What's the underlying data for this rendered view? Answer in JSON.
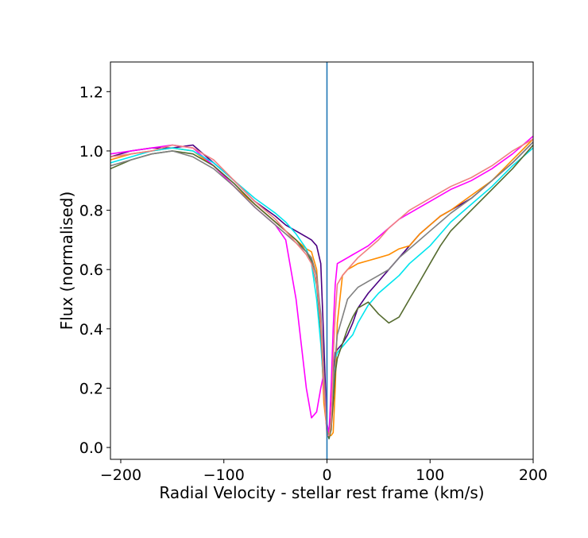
{
  "chart_data": {
    "type": "line",
    "title": "",
    "xlabel": "Radial Velocity - stellar rest frame (km/s)",
    "ylabel": "Flux (normalised)",
    "xlim": [
      -210,
      200
    ],
    "ylim": [
      -0.04,
      1.3
    ],
    "xticks": [
      -200,
      -100,
      0,
      100,
      200
    ],
    "xtick_labels": [
      "−200",
      "−100",
      "0",
      "100",
      "200"
    ],
    "yticks": [
      0.0,
      0.2,
      0.4,
      0.6,
      0.8,
      1.0,
      1.2
    ],
    "ytick_labels": [
      "0.0",
      "0.2",
      "0.4",
      "0.6",
      "0.8",
      "1.0",
      "1.2"
    ],
    "grid": false,
    "legend": "none",
    "vline": {
      "x": 0,
      "color": "#1f77b4"
    },
    "x": [
      -210,
      -190,
      -170,
      -150,
      -130,
      -110,
      -90,
      -70,
      -50,
      -40,
      -30,
      -20,
      -15,
      -10,
      -6,
      -3,
      0,
      2,
      4,
      6,
      8,
      10,
      15,
      20,
      25,
      30,
      40,
      50,
      60,
      70,
      80,
      90,
      100,
      110,
      120,
      140,
      160,
      180,
      200
    ],
    "series": [
      {
        "color": "#4b0082",
        "values": [
          0.98,
          1.0,
          1.01,
          1.01,
          1.02,
          0.96,
          0.9,
          0.83,
          0.78,
          0.75,
          0.73,
          0.71,
          0.7,
          0.68,
          0.62,
          0.35,
          0.06,
          0.03,
          0.1,
          0.25,
          0.32,
          0.33,
          0.35,
          0.38,
          0.42,
          0.47,
          0.52,
          0.56,
          0.6,
          0.64,
          0.68,
          0.72,
          0.75,
          0.78,
          0.8,
          0.84,
          0.9,
          0.96,
          1.03
        ]
      },
      {
        "color": "#ff8c00",
        "values": [
          0.97,
          0.99,
          1.0,
          1.01,
          1.0,
          0.95,
          0.88,
          0.82,
          0.76,
          0.73,
          0.7,
          0.67,
          0.66,
          0.6,
          0.4,
          0.15,
          0.06,
          0.04,
          0.04,
          0.05,
          0.2,
          0.42,
          0.58,
          0.6,
          0.61,
          0.62,
          0.63,
          0.64,
          0.65,
          0.67,
          0.68,
          0.72,
          0.75,
          0.78,
          0.8,
          0.85,
          0.9,
          0.97,
          1.04
        ]
      },
      {
        "color": "#ff00ff",
        "values": [
          0.99,
          1.0,
          1.01,
          1.02,
          1.01,
          0.95,
          0.88,
          0.81,
          0.75,
          0.7,
          0.5,
          0.2,
          0.1,
          0.12,
          0.2,
          0.25,
          0.08,
          0.05,
          0.2,
          0.4,
          0.55,
          0.62,
          0.63,
          0.64,
          0.65,
          0.66,
          0.68,
          0.71,
          0.74,
          0.77,
          0.79,
          0.81,
          0.83,
          0.85,
          0.87,
          0.9,
          0.94,
          0.99,
          1.05
        ]
      },
      {
        "color": "#00e5ee",
        "values": [
          0.96,
          0.98,
          1.0,
          1.01,
          1.0,
          0.96,
          0.9,
          0.84,
          0.79,
          0.76,
          0.72,
          0.67,
          0.62,
          0.5,
          0.35,
          0.2,
          0.05,
          0.03,
          0.08,
          0.2,
          0.3,
          0.32,
          0.34,
          0.36,
          0.38,
          0.42,
          0.48,
          0.52,
          0.55,
          0.58,
          0.62,
          0.65,
          0.68,
          0.72,
          0.76,
          0.82,
          0.88,
          0.95,
          1.01
        ]
      },
      {
        "color": "#556b2f",
        "values": [
          0.94,
          0.97,
          0.99,
          1.0,
          0.99,
          0.95,
          0.89,
          0.82,
          0.76,
          0.73,
          0.7,
          0.66,
          0.63,
          0.55,
          0.4,
          0.2,
          0.05,
          0.03,
          0.06,
          0.15,
          0.25,
          0.3,
          0.35,
          0.4,
          0.44,
          0.47,
          0.49,
          0.45,
          0.42,
          0.44,
          0.5,
          0.56,
          0.62,
          0.68,
          0.73,
          0.8,
          0.87,
          0.94,
          1.02
        ]
      },
      {
        "color": "#808080",
        "values": [
          0.95,
          0.97,
          0.99,
          1.0,
          0.98,
          0.94,
          0.88,
          0.81,
          0.75,
          0.72,
          0.69,
          0.66,
          0.64,
          0.58,
          0.45,
          0.25,
          0.05,
          0.04,
          0.1,
          0.22,
          0.3,
          0.38,
          0.44,
          0.5,
          0.52,
          0.54,
          0.56,
          0.58,
          0.6,
          0.64,
          0.67,
          0.7,
          0.73,
          0.76,
          0.79,
          0.84,
          0.9,
          0.96,
          1.03
        ]
      },
      {
        "color": "#f08080",
        "values": [
          0.98,
          0.99,
          1.0,
          1.02,
          1.01,
          0.97,
          0.9,
          0.83,
          0.77,
          0.73,
          0.69,
          0.65,
          0.62,
          0.56,
          0.42,
          0.2,
          0.04,
          0.04,
          0.08,
          0.3,
          0.45,
          0.55,
          0.58,
          0.6,
          0.62,
          0.64,
          0.67,
          0.7,
          0.74,
          0.77,
          0.8,
          0.82,
          0.84,
          0.86,
          0.88,
          0.91,
          0.95,
          1.0,
          1.04
        ]
      }
    ]
  }
}
